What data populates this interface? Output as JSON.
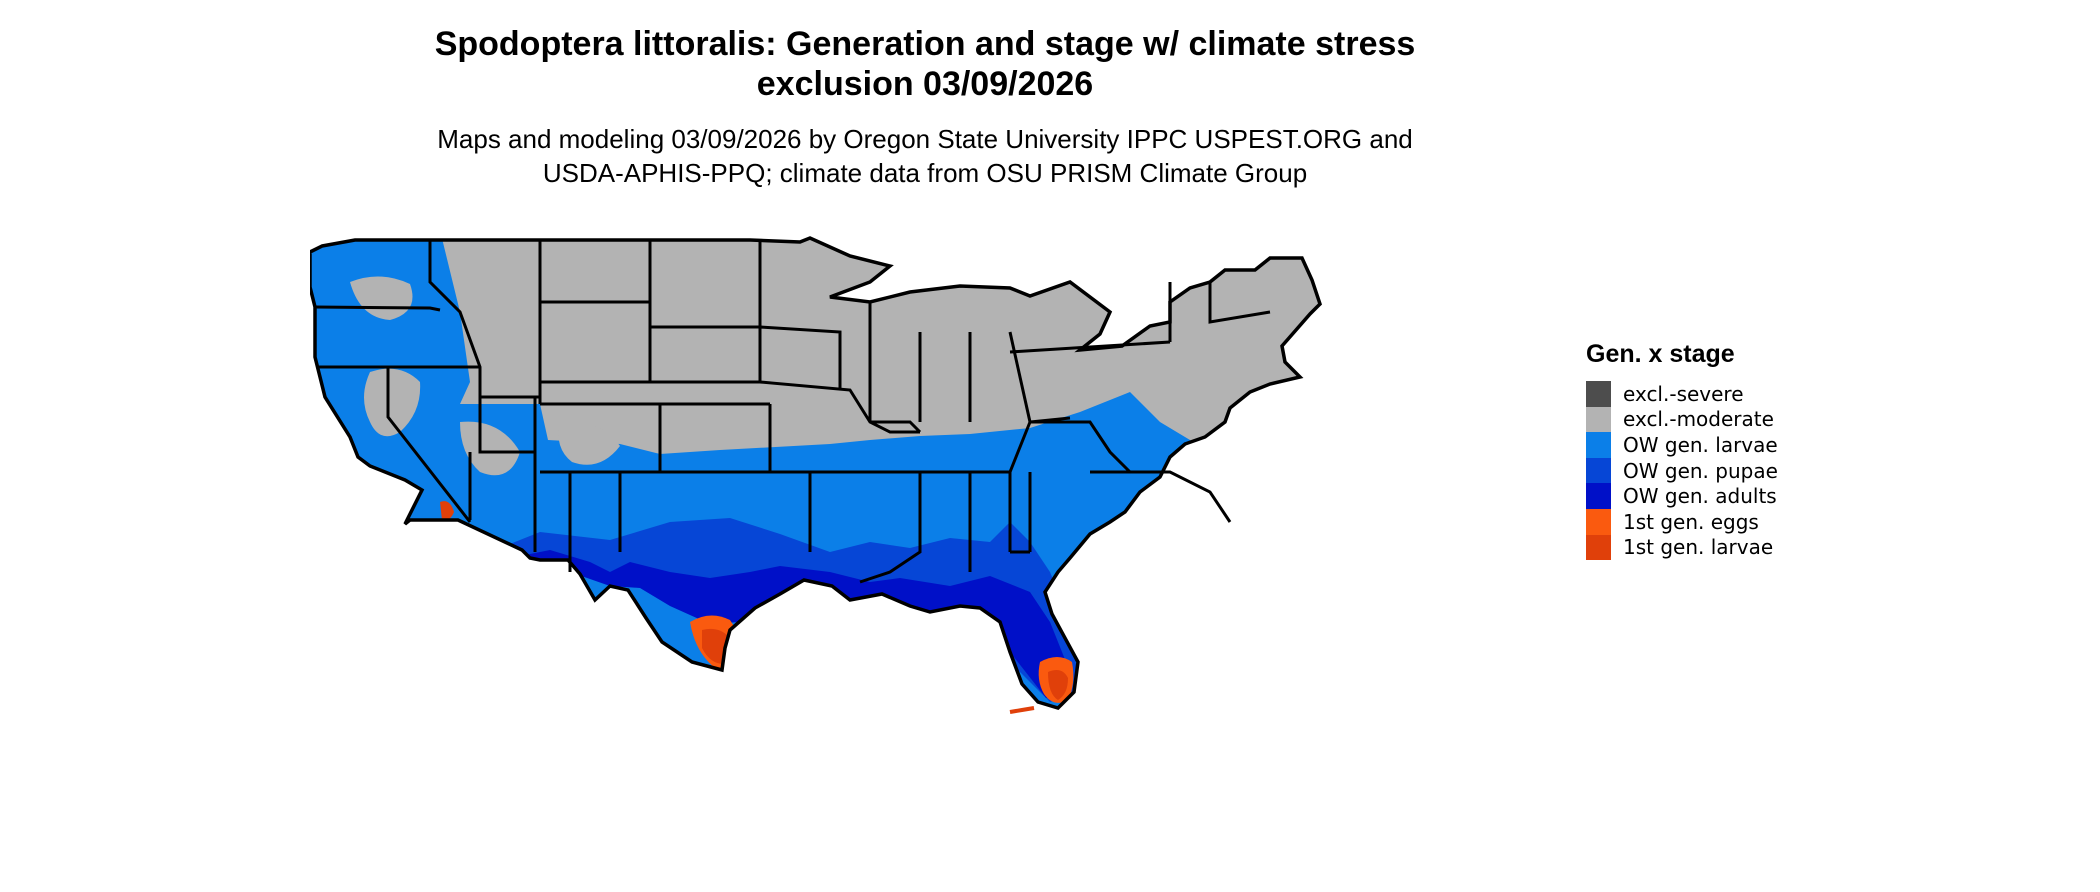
{
  "title": {
    "line1": "Spodoptera littoralis: Generation and stage w/ climate stress",
    "line2": "exclusion 03/09/2026"
  },
  "subtitle": {
    "line1": "Maps and modeling 03/09/2026 by Oregon State University IPPC USPEST.ORG and",
    "line2": "USDA-APHIS-PPQ; climate data from OSU PRISM Climate Group"
  },
  "legend": {
    "title": "Gen. x stage",
    "items": [
      {
        "label": "excl.-severe",
        "color": "#4d4d4d"
      },
      {
        "label": "excl.-moderate",
        "color": "#b3b3b3"
      },
      {
        "label": "OW gen. larvae",
        "color": "#0b7fe8"
      },
      {
        "label": "OW gen. pupae",
        "color": "#0646d6"
      },
      {
        "label": "OW gen. adults",
        "color": "#0010c8"
      },
      {
        "label": "1st gen. eggs",
        "color": "#fa5a0f"
      },
      {
        "label": "1st gen. larvae",
        "color": "#e0400a"
      }
    ]
  }
}
